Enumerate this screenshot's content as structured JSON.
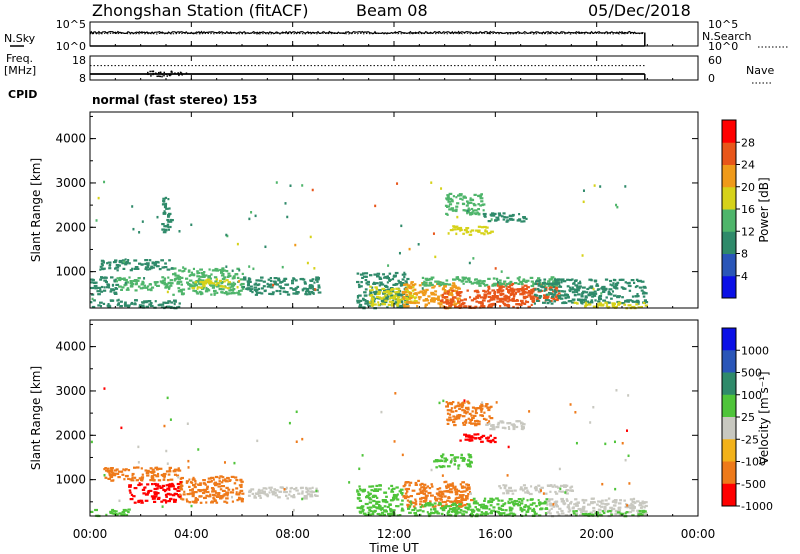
{
  "header": {
    "station": "Zhongshan Station (fitACF)",
    "beam": "Beam 08",
    "date": "05/Dec/2018"
  },
  "nsky_panel": {
    "left_label": "N.Sky",
    "right_label": "N.Search",
    "left_ticks": [
      "10^5",
      "10^0"
    ],
    "right_ticks": [
      "10^5",
      "10^0"
    ],
    "left_tick_values": [
      5,
      0
    ],
    "noise_sky_log": 2.8,
    "noise_search_log": 2.6,
    "x_end_hour": 21.9
  },
  "freq_panel": {
    "left_label_line1": "Freq.",
    "left_label_line2": "[MHz]",
    "right_label": "Nave",
    "left_ticks": [
      "18",
      "8"
    ],
    "right_ticks": [
      "60",
      "0"
    ],
    "left_range": [
      8,
      18
    ],
    "freq_mhz": 10.5,
    "nave": 36,
    "x_end_hour": 21.9
  },
  "cpid": {
    "label": "CPID",
    "mode": "normal (fast stereo) 153"
  },
  "xaxis": {
    "range_hours": [
      0,
      24
    ],
    "tick_labels": [
      "00:00",
      "04:00",
      "08:00",
      "12:00",
      "16:00",
      "20:00",
      "00:00"
    ],
    "tick_hours": [
      0,
      4,
      8,
      12,
      16,
      20,
      24
    ],
    "title": "Time UT"
  },
  "power_panel": {
    "ylabel": "Slant Range [km]",
    "yticks": [
      "1000",
      "2000",
      "3000",
      "4000"
    ],
    "ytick_values": [
      1000,
      2000,
      3000,
      4000
    ],
    "ylim": [
      180,
      4600
    ],
    "colorbar_label": "Power [dB]",
    "colorbar_ticks": [
      "4",
      "8",
      "12",
      "16",
      "20",
      "24",
      "28"
    ],
    "colorbar_range": [
      0,
      32
    ],
    "colors": [
      "#0b10e6",
      "#2a56b8",
      "#2f8a6a",
      "#4fb56b",
      "#d6d21a",
      "#ef9a1a",
      "#e8561a",
      "#ff0000"
    ]
  },
  "velocity_panel": {
    "ylabel": "Slant Range [km]",
    "yticks": [
      "1000",
      "2000",
      "3000",
      "4000"
    ],
    "ytick_values": [
      1000,
      2000,
      3000,
      4000
    ],
    "ylim": [
      180,
      4600
    ],
    "colorbar_label": "Velocity [m s⁻¹]",
    "colorbar_ticks": [
      "1000",
      "500",
      "100",
      "25",
      "-25",
      "-100",
      "-500",
      "-1000"
    ],
    "colors": [
      "#0b10e6",
      "#2a56b8",
      "#2f8a6a",
      "#4fc43a",
      "#c8c8c0",
      "#f2b21a",
      "#ee7a1a",
      "#ff0000"
    ]
  },
  "chart_data": [
    {
      "type": "heatmap",
      "title": "Power [dB]",
      "xlabel": "Time UT",
      "ylabel": "Slant Range [km]",
      "xlim": [
        0,
        24
      ],
      "ylim": [
        180,
        4600
      ],
      "regions": [
        {
          "t": [
            0.0,
            3.5
          ],
          "r": [
            200,
            380
          ],
          "v": 8
        },
        {
          "t": [
            0.3,
            3.2
          ],
          "r": [
            1050,
            1300
          ],
          "v": 8
        },
        {
          "t": [
            0.0,
            1.0
          ],
          "r": [
            500,
            900
          ],
          "v": 10
        },
        {
          "t": [
            1.0,
            3.2
          ],
          "r": [
            600,
            900
          ],
          "v": 12
        },
        {
          "t": [
            3.2,
            6.0
          ],
          "r": [
            500,
            1100
          ],
          "v": 14
        },
        {
          "t": [
            4.0,
            5.5
          ],
          "r": [
            650,
            850
          ],
          "v": 18
        },
        {
          "t": [
            6.0,
            9.0
          ],
          "r": [
            500,
            900
          ],
          "v": 8
        },
        {
          "t": [
            10.5,
            12.5
          ],
          "r": [
            200,
            1000
          ],
          "v": 8
        },
        {
          "t": [
            11.0,
            12.8
          ],
          "r": [
            250,
            700
          ],
          "v": 18
        },
        {
          "t": [
            12.3,
            14.5
          ],
          "r": [
            200,
            800
          ],
          "v": 22
        },
        {
          "t": [
            13.8,
            17.5
          ],
          "r": [
            200,
            600
          ],
          "v": 26
        },
        {
          "t": [
            15.5,
            18.5
          ],
          "r": [
            350,
            750
          ],
          "v": 24
        },
        {
          "t": [
            13.0,
            18.5
          ],
          "r": [
            700,
            900
          ],
          "v": 12
        },
        {
          "t": [
            17.5,
            21.9
          ],
          "r": [
            300,
            850
          ],
          "v": 8
        },
        {
          "t": [
            19.0,
            21.9
          ],
          "r": [
            200,
            330
          ],
          "v": 16
        },
        {
          "t": [
            14.0,
            15.5
          ],
          "r": [
            2300,
            2800
          ],
          "v": 12
        },
        {
          "t": [
            14.2,
            15.8
          ],
          "r": [
            1850,
            2050
          ],
          "v": 16
        },
        {
          "t": [
            15.5,
            17.2
          ],
          "r": [
            2150,
            2350
          ],
          "v": 8
        },
        {
          "t": [
            2.8,
            3.2
          ],
          "r": [
            1900,
            2700
          ],
          "v": 8
        }
      ]
    },
    {
      "type": "heatmap",
      "title": "Velocity [m s⁻¹]",
      "xlabel": "Time UT",
      "ylabel": "Slant Range [km]",
      "xlim": [
        0,
        24
      ],
      "ylim": [
        180,
        4600
      ],
      "regions": [
        {
          "t": [
            0.0,
            1.5
          ],
          "r": [
            200,
            350
          ],
          "v": 100
        },
        {
          "t": [
            0.5,
            3.5
          ],
          "r": [
            1000,
            1300
          ],
          "v": -100
        },
        {
          "t": [
            1.5,
            3.5
          ],
          "r": [
            500,
            950
          ],
          "v": -500
        },
        {
          "t": [
            3.5,
            6.0
          ],
          "r": [
            500,
            1100
          ],
          "v": -100
        },
        {
          "t": [
            6.0,
            9.0
          ],
          "r": [
            600,
            850
          ],
          "v": 0
        },
        {
          "t": [
            10.5,
            12.3
          ],
          "r": [
            200,
            900
          ],
          "v": 100
        },
        {
          "t": [
            12.3,
            15.0
          ],
          "r": [
            400,
            1000
          ],
          "v": -100
        },
        {
          "t": [
            12.5,
            15.5
          ],
          "r": [
            200,
            500
          ],
          "v": 100
        },
        {
          "t": [
            15.0,
            18.0
          ],
          "r": [
            200,
            600
          ],
          "v": 100
        },
        {
          "t": [
            16.0,
            19.0
          ],
          "r": [
            700,
            900
          ],
          "v": 0
        },
        {
          "t": [
            18.0,
            21.9
          ],
          "r": [
            200,
            600
          ],
          "v": 0
        },
        {
          "t": [
            19.0,
            21.9
          ],
          "r": [
            200,
            320
          ],
          "v": 100
        },
        {
          "t": [
            14.0,
            15.8
          ],
          "r": [
            2250,
            2800
          ],
          "v": -100
        },
        {
          "t": [
            14.5,
            16.0
          ],
          "r": [
            1850,
            2050
          ],
          "v": -500
        },
        {
          "t": [
            15.5,
            17.2
          ],
          "r": [
            2150,
            2350
          ],
          "v": 0
        },
        {
          "t": [
            13.5,
            15.0
          ],
          "r": [
            1300,
            1600
          ],
          "v": 100
        }
      ]
    }
  ]
}
